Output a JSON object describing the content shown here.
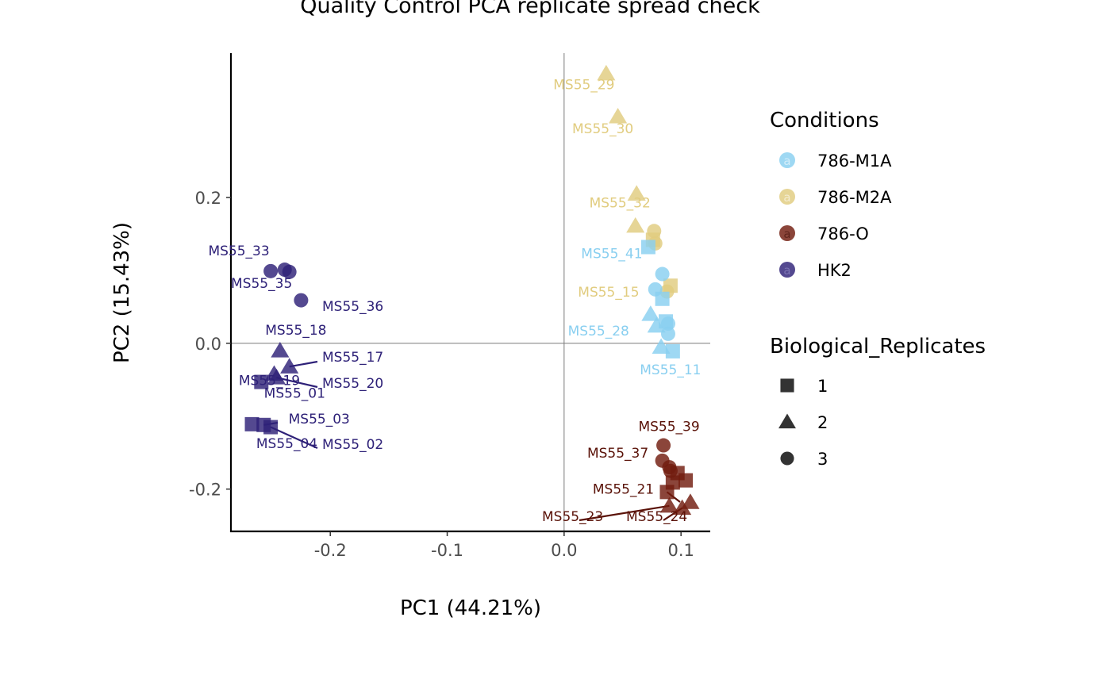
{
  "chart_data": {
    "type": "scatter",
    "title": "Quality Control PCA replicate spread check",
    "xlabel": "PC1 (44.21%)",
    "ylabel": "PC2 (15.43%)",
    "xlim": [
      -0.285,
      0.125
    ],
    "ylim": [
      -0.258,
      0.398
    ],
    "xticks": [
      -0.2,
      -0.1,
      0.0,
      0.1
    ],
    "xtick_labels": [
      "-0.2",
      "-0.1",
      "0.0",
      "0.1"
    ],
    "yticks": [
      -0.2,
      0.0,
      0.2
    ],
    "ytick_labels": [
      "-0.2",
      "0.0",
      "0.2"
    ],
    "reference_lines": {
      "x": 0,
      "y": 0
    },
    "grid": false,
    "legend_position": "right",
    "legends": [
      {
        "title": "Conditions",
        "items": [
          {
            "label": "786-M1A",
            "color": "#89cff0"
          },
          {
            "label": "786-M2A",
            "color": "#e1cc7f"
          },
          {
            "label": "786-O",
            "color": "#721c0f"
          },
          {
            "label": "HK2",
            "color": "#2e2178"
          }
        ]
      },
      {
        "title": "Biological_Replicates",
        "items": [
          {
            "label": "1",
            "shape": "square"
          },
          {
            "label": "2",
            "shape": "triangle"
          },
          {
            "label": "3",
            "shape": "circle"
          }
        ]
      }
    ],
    "points": [
      {
        "condition": "HK2",
        "rep": "3",
        "x": -0.251,
        "y": 0.099,
        "label": "MS55_33"
      },
      {
        "condition": "HK2",
        "rep": "3",
        "x": -0.239,
        "y": 0.101
      },
      {
        "condition": "HK2",
        "rep": "3",
        "x": -0.235,
        "y": 0.098,
        "label": "MS55_35"
      },
      {
        "condition": "HK2",
        "rep": "3",
        "x": -0.225,
        "y": 0.059,
        "label": "MS55_36"
      },
      {
        "condition": "HK2",
        "rep": "2",
        "x": -0.243,
        "y": -0.01,
        "label": "MS55_18"
      },
      {
        "condition": "HK2",
        "rep": "2",
        "x": -0.235,
        "y": -0.032,
        "label": "MS55_17"
      },
      {
        "condition": "HK2",
        "rep": "2",
        "x": -0.248,
        "y": -0.042,
        "label": "MS55_19"
      },
      {
        "condition": "HK2",
        "rep": "2",
        "x": -0.246,
        "y": -0.047,
        "label": "MS55_20"
      },
      {
        "condition": "HK2",
        "rep": "1",
        "x": -0.259,
        "y": -0.053,
        "label": "MS55_01"
      },
      {
        "condition": "HK2",
        "rep": "1",
        "x": -0.267,
        "y": -0.111,
        "label": "MS55_04"
      },
      {
        "condition": "HK2",
        "rep": "1",
        "x": -0.257,
        "y": -0.112,
        "label": "MS55_03"
      },
      {
        "condition": "HK2",
        "rep": "1",
        "x": -0.251,
        "y": -0.115,
        "label": "MS55_02"
      },
      {
        "condition": "786-M2A",
        "rep": "2",
        "x": 0.036,
        "y": 0.37,
        "label": "MS55_29"
      },
      {
        "condition": "786-M2A",
        "rep": "2",
        "x": 0.046,
        "y": 0.311,
        "label": "MS55_30"
      },
      {
        "condition": "786-M2A",
        "rep": "2",
        "x": 0.062,
        "y": 0.205,
        "label": "MS55_32"
      },
      {
        "condition": "786-M2A",
        "rep": "2",
        "x": 0.061,
        "y": 0.161
      },
      {
        "condition": "786-M2A",
        "rep": "3",
        "x": 0.077,
        "y": 0.154
      },
      {
        "condition": "786-M2A",
        "rep": "1",
        "x": 0.076,
        "y": 0.142
      },
      {
        "condition": "786-M2A",
        "rep": "3",
        "x": 0.078,
        "y": 0.137
      },
      {
        "condition": "786-M2A",
        "rep": "1",
        "x": 0.091,
        "y": 0.079,
        "label": "MS55_15"
      },
      {
        "condition": "786-M2A",
        "rep": "3",
        "x": 0.088,
        "y": 0.071
      },
      {
        "condition": "786-M1A",
        "rep": "1",
        "x": 0.072,
        "y": 0.132,
        "label": "MS55_41"
      },
      {
        "condition": "786-M1A",
        "rep": "3",
        "x": 0.084,
        "y": 0.095
      },
      {
        "condition": "786-M1A",
        "rep": "3",
        "x": 0.078,
        "y": 0.074
      },
      {
        "condition": "786-M1A",
        "rep": "1",
        "x": 0.084,
        "y": 0.061
      },
      {
        "condition": "786-M1A",
        "rep": "2",
        "x": 0.074,
        "y": 0.04
      },
      {
        "condition": "786-M1A",
        "rep": "1",
        "x": 0.087,
        "y": 0.03
      },
      {
        "condition": "786-M1A",
        "rep": "3",
        "x": 0.089,
        "y": 0.027
      },
      {
        "condition": "786-M1A",
        "rep": "2",
        "x": 0.079,
        "y": 0.024,
        "label": "MS55_28"
      },
      {
        "condition": "786-M1A",
        "rep": "3",
        "x": 0.089,
        "y": 0.013
      },
      {
        "condition": "786-M1A",
        "rep": "2",
        "x": 0.083,
        "y": -0.005
      },
      {
        "condition": "786-M1A",
        "rep": "1",
        "x": 0.093,
        "y": -0.011,
        "label": "MS55_11"
      },
      {
        "condition": "786-O",
        "rep": "3",
        "x": 0.085,
        "y": -0.14,
        "label": "MS55_39"
      },
      {
        "condition": "786-O",
        "rep": "3",
        "x": 0.084,
        "y": -0.161,
        "label": "MS55_37"
      },
      {
        "condition": "786-O",
        "rep": "3",
        "x": 0.09,
        "y": -0.17
      },
      {
        "condition": "786-O",
        "rep": "1",
        "x": 0.097,
        "y": -0.178
      },
      {
        "condition": "786-O",
        "rep": "3",
        "x": 0.091,
        "y": -0.175
      },
      {
        "condition": "786-O",
        "rep": "1",
        "x": 0.104,
        "y": -0.188
      },
      {
        "condition": "786-O",
        "rep": "1",
        "x": 0.093,
        "y": -0.191
      },
      {
        "condition": "786-O",
        "rep": "1",
        "x": 0.088,
        "y": -0.204,
        "label": "MS55_21"
      },
      {
        "condition": "786-O",
        "rep": "2",
        "x": 0.108,
        "y": -0.218
      },
      {
        "condition": "786-O",
        "rep": "2",
        "x": 0.09,
        "y": -0.223,
        "label": "MS55_23"
      },
      {
        "condition": "786-O",
        "rep": "2",
        "x": 0.101,
        "y": -0.226,
        "label": "MS55_24"
      }
    ]
  }
}
